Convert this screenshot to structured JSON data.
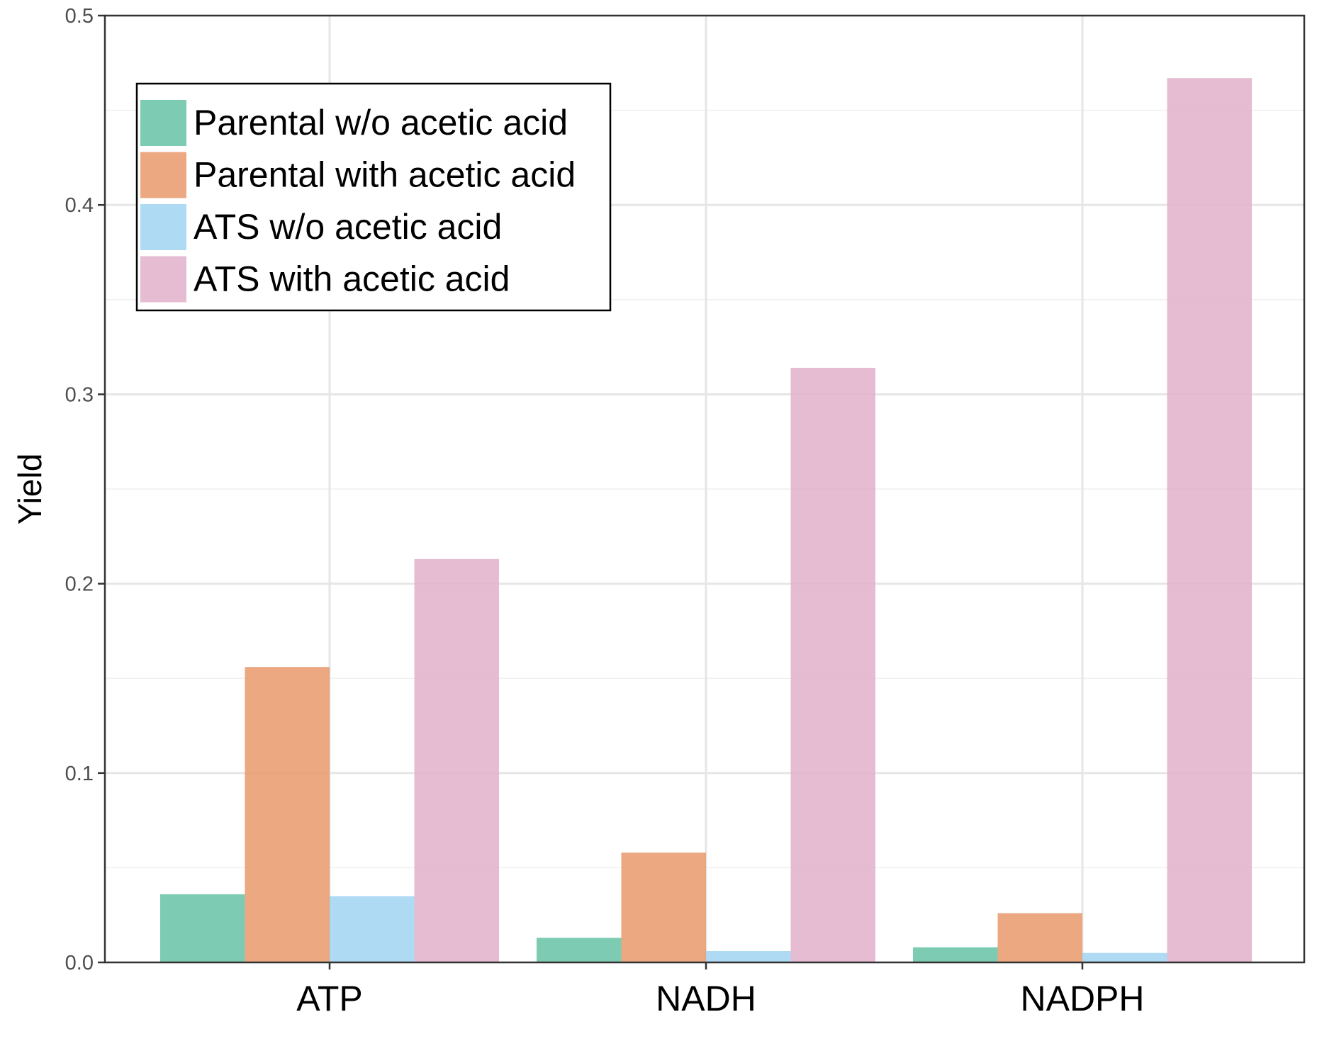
{
  "chart_data": {
    "type": "bar",
    "categories": [
      "ATP",
      "NADH",
      "NADPH"
    ],
    "series": [
      {
        "name": "Parental w/o acetic acid",
        "color": "#66c2a5",
        "values": [
          0.036,
          0.013,
          0.008
        ]
      },
      {
        "name": "Parental with acetic acid",
        "color": "#e8996b",
        "values": [
          0.156,
          0.058,
          0.026
        ]
      },
      {
        "name": "ATS w/o acetic acid",
        "color": "#a0d4f2",
        "values": [
          0.035,
          0.006,
          0.005
        ]
      },
      {
        "name": "ATS with acetic acid",
        "color": "#e0b0ca",
        "values": [
          0.213,
          0.314,
          0.467
        ]
      }
    ],
    "ylabel": "Yield",
    "xlabel": "",
    "title": "",
    "ylim": [
      0,
      0.5
    ],
    "yticks": [
      "0.0",
      "0.1",
      "0.2",
      "0.3",
      "0.4",
      "0.5"
    ],
    "grid": true,
    "legend_position": "top-left"
  }
}
